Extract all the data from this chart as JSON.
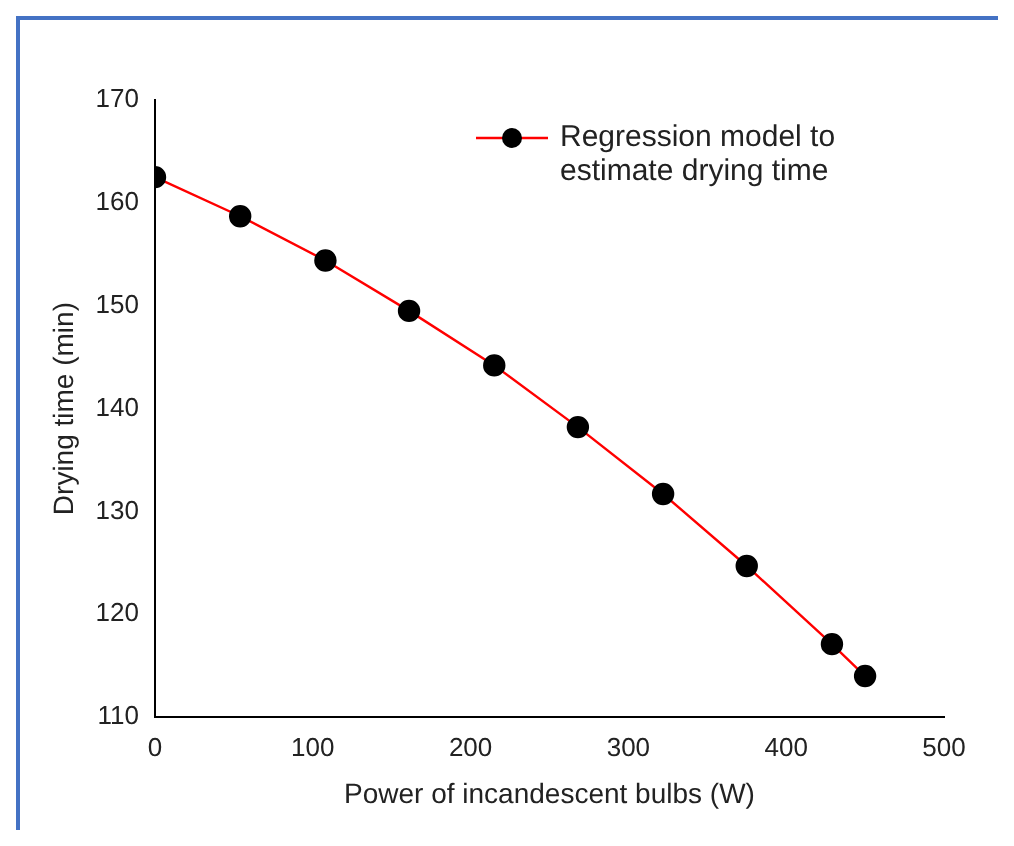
{
  "chart_data": {
    "type": "line",
    "xlabel": "Power of incandescent bulbs (W)",
    "ylabel": "Drying time (min)",
    "x": [
      0,
      54,
      108,
      161,
      215,
      268,
      322,
      375,
      429,
      450
    ],
    "series": [
      {
        "name": "Regression model to estimate drying time",
        "color": "#ff0000",
        "values": [
          162.5,
          158.7,
          154.4,
          149.5,
          144.2,
          138.2,
          131.7,
          124.7,
          117.1,
          114.0
        ]
      }
    ],
    "xlim": [
      0,
      500
    ],
    "xticks": [
      0,
      100,
      200,
      300,
      400,
      500
    ],
    "ylim": [
      110,
      170
    ],
    "yticks": [
      110,
      120,
      130,
      140,
      150,
      160,
      170
    ],
    "grid": false,
    "legend": "top right",
    "marker": "circle",
    "line_style": "solid"
  }
}
